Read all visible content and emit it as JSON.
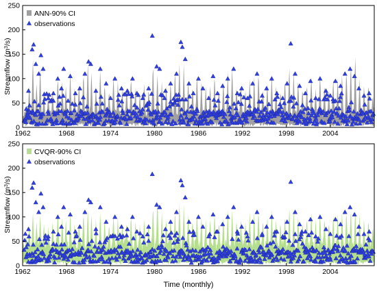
{
  "x_axis_title": "Time (monthly)",
  "chart_data": [
    {
      "type": "area",
      "title": "",
      "xlabel": "",
      "ylabel": "Streamflow (m³/s)",
      "ylabel_parts": {
        "before": "Streamflow (m",
        "sup": "3",
        "after": "/s)"
      },
      "xlim": [
        1962,
        2010
      ],
      "ylim": [
        0,
        250
      ],
      "xticks": [
        "1962",
        "1968",
        "1974",
        "1980",
        "1986",
        "1992",
        "1998",
        "2004"
      ],
      "yticks": [
        "0",
        "50",
        "100",
        "150",
        "200",
        "250"
      ],
      "grid": false,
      "legend": "top-left",
      "series": [
        {
          "name": "ANN-90% CI",
          "kind": "band",
          "color": "#a0a0a0"
        },
        {
          "name": "observations",
          "kind": "scatter",
          "color": "#2f3fe0",
          "marker": "triangle"
        }
      ]
    },
    {
      "type": "area",
      "title": "",
      "xlabel": "Time (monthly)",
      "ylabel": "Streamflow (m³/s)",
      "ylabel_parts": {
        "before": "Streamflow (m",
        "sup": "3",
        "after": "/s)"
      },
      "xlim": [
        1962,
        2010
      ],
      "ylim": [
        0,
        250
      ],
      "xticks": [
        "1962",
        "1968",
        "1974",
        "1980",
        "1986",
        "1992",
        "1998",
        "2004"
      ],
      "yticks": [
        "0",
        "50",
        "100",
        "150",
        "200",
        "250"
      ],
      "grid": false,
      "legend": "top-left",
      "series": [
        {
          "name": "CVQR-90% CI",
          "kind": "band",
          "color": "#b5df8f"
        },
        {
          "name": "observations",
          "kind": "scatter",
          "color": "#2f3fe0",
          "marker": "triangle"
        }
      ]
    }
  ],
  "observation_peaks": [
    [
      1962.5,
      38
    ],
    [
      1962.8,
      75
    ],
    [
      1963.3,
      160
    ],
    [
      1963.5,
      170
    ],
    [
      1963.8,
      130
    ],
    [
      1964.2,
      110
    ],
    [
      1964.5,
      148
    ],
    [
      1964.8,
      120
    ],
    [
      1965.5,
      60
    ],
    [
      1966.2,
      70
    ],
    [
      1966.8,
      100
    ],
    [
      1967.3,
      80
    ],
    [
      1967.6,
      120
    ],
    [
      1968.5,
      105
    ],
    [
      1969.2,
      70
    ],
    [
      1969.8,
      80
    ],
    [
      1970.5,
      110
    ],
    [
      1971.0,
      135
    ],
    [
      1971.3,
      130
    ],
    [
      1972.0,
      75
    ],
    [
      1972.6,
      120
    ],
    [
      1973.4,
      90
    ],
    [
      1974.0,
      60
    ],
    [
      1974.6,
      100
    ],
    [
      1975.5,
      80
    ],
    [
      1976.3,
      75
    ],
    [
      1977.0,
      100
    ],
    [
      1977.6,
      70
    ],
    [
      1978.4,
      60
    ],
    [
      1979.2,
      80
    ],
    [
      1979.7,
      188
    ],
    [
      1980.3,
      125
    ],
    [
      1980.7,
      120
    ],
    [
      1981.5,
      75
    ],
    [
      1982.2,
      90
    ],
    [
      1983.0,
      110
    ],
    [
      1983.6,
      175
    ],
    [
      1983.8,
      165
    ],
    [
      1984.2,
      140
    ],
    [
      1984.7,
      90
    ],
    [
      1985.3,
      70
    ],
    [
      1986.0,
      100
    ],
    [
      1986.6,
      80
    ],
    [
      1987.4,
      60
    ],
    [
      1988.0,
      105
    ],
    [
      1988.6,
      70
    ],
    [
      1989.3,
      85
    ],
    [
      1990.0,
      100
    ],
    [
      1990.8,
      120
    ],
    [
      1991.3,
      70
    ],
    [
      1991.9,
      80
    ],
    [
      1992.7,
      60
    ],
    [
      1993.4,
      90
    ],
    [
      1994.0,
      110
    ],
    [
      1994.7,
      65
    ],
    [
      1995.3,
      80
    ],
    [
      1996.0,
      100
    ],
    [
      1996.7,
      70
    ],
    [
      1997.5,
      60
    ],
    [
      1998.1,
      90
    ],
    [
      1998.6,
      172
    ],
    [
      1999.2,
      110
    ],
    [
      1999.8,
      85
    ],
    [
      2000.6,
      70
    ],
    [
      2001.3,
      95
    ],
    [
      2002.0,
      60
    ],
    [
      2002.6,
      100
    ],
    [
      2003.4,
      75
    ],
    [
      2004.0,
      65
    ],
    [
      2004.7,
      95
    ],
    [
      2005.4,
      85
    ],
    [
      2006.0,
      110
    ],
    [
      2006.7,
      120
    ],
    [
      2007.3,
      105
    ],
    [
      2007.9,
      80
    ],
    [
      2008.6,
      65
    ],
    [
      2009.3,
      70
    ]
  ],
  "band_peaks_ann": [
    [
      1962.5,
      45
    ],
    [
      1962.9,
      90
    ],
    [
      1963.4,
      150
    ],
    [
      1963.9,
      95
    ],
    [
      1964.4,
      130
    ],
    [
      1964.9,
      80
    ],
    [
      1965.5,
      70
    ],
    [
      1966.1,
      80
    ],
    [
      1966.8,
      110
    ],
    [
      1967.4,
      100
    ],
    [
      1967.9,
      90
    ],
    [
      1968.5,
      115
    ],
    [
      1969.1,
      85
    ],
    [
      1969.7,
      95
    ],
    [
      1970.3,
      120
    ],
    [
      1970.9,
      140
    ],
    [
      1971.4,
      120
    ],
    [
      1972.0,
      85
    ],
    [
      1972.6,
      125
    ],
    [
      1973.2,
      95
    ],
    [
      1973.8,
      80
    ],
    [
      1974.4,
      110
    ],
    [
      1975.0,
      95
    ],
    [
      1975.6,
      85
    ],
    [
      1976.2,
      90
    ],
    [
      1976.8,
      110
    ],
    [
      1977.4,
      85
    ],
    [
      1978.0,
      70
    ],
    [
      1978.6,
      95
    ],
    [
      1979.2,
      85
    ],
    [
      1979.8,
      140
    ],
    [
      1980.4,
      115
    ],
    [
      1981.0,
      95
    ],
    [
      1981.6,
      90
    ],
    [
      1982.2,
      100
    ],
    [
      1982.8,
      125
    ],
    [
      1983.4,
      140
    ],
    [
      1984.0,
      130
    ],
    [
      1984.6,
      100
    ],
    [
      1985.2,
      90
    ],
    [
      1985.8,
      115
    ],
    [
      1986.4,
      100
    ],
    [
      1987.0,
      85
    ],
    [
      1987.6,
      90
    ],
    [
      1988.2,
      115
    ],
    [
      1988.8,
      85
    ],
    [
      1989.4,
      100
    ],
    [
      1990.0,
      115
    ],
    [
      1990.6,
      130
    ],
    [
      1991.2,
      90
    ],
    [
      1991.8,
      95
    ],
    [
      1992.4,
      80
    ],
    [
      1993.0,
      100
    ],
    [
      1993.6,
      110
    ],
    [
      1994.2,
      120
    ],
    [
      1994.8,
      85
    ],
    [
      1995.4,
      95
    ],
    [
      1996.0,
      110
    ],
    [
      1996.6,
      90
    ],
    [
      1997.2,
      80
    ],
    [
      1997.8,
      105
    ],
    [
      1998.4,
      130
    ],
    [
      1999.0,
      115
    ],
    [
      1999.6,
      100
    ],
    [
      2000.2,
      85
    ],
    [
      2000.8,
      95
    ],
    [
      2001.4,
      110
    ],
    [
      2002.0,
      80
    ],
    [
      2002.6,
      115
    ],
    [
      2003.2,
      95
    ],
    [
      2003.8,
      85
    ],
    [
      2004.4,
      105
    ],
    [
      2005.0,
      100
    ],
    [
      2005.6,
      115
    ],
    [
      2006.2,
      125
    ],
    [
      2006.8,
      140
    ],
    [
      2007.4,
      155
    ],
    [
      2008.0,
      100
    ],
    [
      2008.6,
      90
    ],
    [
      2009.2,
      95
    ],
    [
      2009.8,
      70
    ]
  ],
  "band_peaks_cvqr": [
    [
      1962.5,
      60
    ],
    [
      1962.9,
      85
    ],
    [
      1963.4,
      115
    ],
    [
      1963.9,
      95
    ],
    [
      1964.4,
      110
    ],
    [
      1964.9,
      90
    ],
    [
      1965.5,
      80
    ],
    [
      1966.1,
      95
    ],
    [
      1966.8,
      120
    ],
    [
      1967.4,
      105
    ],
    [
      1967.9,
      100
    ],
    [
      1968.5,
      110
    ],
    [
      1969.1,
      90
    ],
    [
      1969.7,
      95
    ],
    [
      1970.3,
      115
    ],
    [
      1970.9,
      120
    ],
    [
      1971.4,
      110
    ],
    [
      1972.0,
      95
    ],
    [
      1972.6,
      115
    ],
    [
      1973.2,
      100
    ],
    [
      1973.8,
      90
    ],
    [
      1974.4,
      110
    ],
    [
      1975.0,
      100
    ],
    [
      1975.6,
      90
    ],
    [
      1976.2,
      95
    ],
    [
      1976.8,
      110
    ],
    [
      1977.4,
      95
    ],
    [
      1978.0,
      85
    ],
    [
      1978.6,
      100
    ],
    [
      1979.2,
      95
    ],
    [
      1979.8,
      130
    ],
    [
      1980.4,
      145
    ],
    [
      1981.0,
      110
    ],
    [
      1981.6,
      100
    ],
    [
      1982.2,
      105
    ],
    [
      1982.8,
      120
    ],
    [
      1983.4,
      135
    ],
    [
      1984.0,
      125
    ],
    [
      1984.6,
      110
    ],
    [
      1985.2,
      100
    ],
    [
      1985.8,
      115
    ],
    [
      1986.4,
      105
    ],
    [
      1987.0,
      95
    ],
    [
      1987.6,
      100
    ],
    [
      1988.2,
      115
    ],
    [
      1988.8,
      95
    ],
    [
      1989.4,
      105
    ],
    [
      1990.0,
      115
    ],
    [
      1990.6,
      120
    ],
    [
      1991.2,
      100
    ],
    [
      1991.8,
      105
    ],
    [
      1992.4,
      95
    ],
    [
      1993.0,
      110
    ],
    [
      1993.6,
      115
    ],
    [
      1994.2,
      120
    ],
    [
      1994.8,
      100
    ],
    [
      1995.4,
      105
    ],
    [
      1996.0,
      115
    ],
    [
      1996.6,
      100
    ],
    [
      1997.2,
      95
    ],
    [
      1997.8,
      110
    ],
    [
      1998.4,
      125
    ],
    [
      1999.0,
      115
    ],
    [
      1999.6,
      105
    ],
    [
      2000.2,
      95
    ],
    [
      2000.8,
      105
    ],
    [
      2001.4,
      115
    ],
    [
      2002.0,
      95
    ],
    [
      2002.6,
      115
    ],
    [
      2003.2,
      105
    ],
    [
      2003.8,
      95
    ],
    [
      2004.4,
      110
    ],
    [
      2005.0,
      105
    ],
    [
      2005.6,
      115
    ],
    [
      2006.2,
      120
    ],
    [
      2006.8,
      125
    ],
    [
      2007.4,
      120
    ],
    [
      2008.0,
      105
    ],
    [
      2008.6,
      100
    ],
    [
      2009.2,
      100
    ],
    [
      2009.8,
      85
    ]
  ],
  "colors": {
    "axis": "#000000",
    "text": "#000000",
    "ann_band": "#a0a0a0",
    "cvqr_band": "#b5df8f",
    "observations": "#2f3fe0",
    "observation_outline": "#1a238c"
  }
}
